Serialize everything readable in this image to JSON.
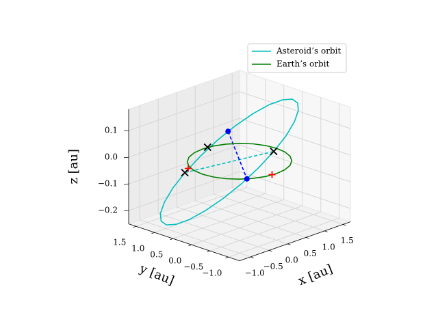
{
  "chart_data": {
    "type": "line3d",
    "xlabel": "x [au]",
    "ylabel": "y [au]",
    "zlabel": "z [au]",
    "xlim": [
      -1.3,
      1.7
    ],
    "ylim": [
      -1.3,
      1.7
    ],
    "zlim": [
      -0.25,
      0.18
    ],
    "xticks": [
      {
        "value": -1.0,
        "label": "−1.0"
      },
      {
        "value": -0.5,
        "label": "−0.5"
      },
      {
        "value": 0.0,
        "label": "0.0"
      },
      {
        "value": 0.5,
        "label": "0.5"
      },
      {
        "value": 1.0,
        "label": "1.0"
      },
      {
        "value": 1.5,
        "label": "1.5"
      }
    ],
    "yticks": [
      {
        "value": -1.0,
        "label": "−1.0"
      },
      {
        "value": -0.5,
        "label": "−0.5"
      },
      {
        "value": 0.0,
        "label": "0.0"
      },
      {
        "value": 0.5,
        "label": "0.5"
      },
      {
        "value": 1.0,
        "label": "1.0"
      },
      {
        "value": 1.5,
        "label": "1.5"
      }
    ],
    "zticks": [
      {
        "value": -0.2,
        "label": "−0.2"
      },
      {
        "value": -0.1,
        "label": "−0.1"
      },
      {
        "value": 0.0,
        "label": "0.0"
      },
      {
        "value": 0.1,
        "label": "0.1"
      }
    ],
    "grid": true,
    "legend": "upper right",
    "series": [
      {
        "name": "Asteroid’s orbit",
        "color": "#00bfbf",
        "x": [
          0.835,
          0.708,
          0.521,
          0.287,
          0.023,
          -0.254,
          -0.525,
          -0.772,
          -0.977,
          -1.127,
          -1.211,
          -1.224,
          -1.165,
          -1.038,
          -0.851,
          -0.617,
          -0.353,
          -0.076,
          0.195,
          0.442,
          0.647,
          0.797,
          0.881,
          0.894
        ],
        "y": [
          -0.09,
          -0.549,
          -0.963,
          -1.304,
          -1.549,
          -1.681,
          -1.69,
          -1.577,
          -1.349,
          -1.022,
          -0.617,
          -0.163,
          0.31,
          0.769,
          1.183,
          1.524,
          1.769,
          1.901,
          1.91,
          1.797,
          1.569,
          1.242,
          0.837,
          0.383
        ],
        "z": [
          0,
          0.086,
          0.167,
          0.236,
          0.289,
          0.323,
          0.334,
          0.323,
          0.289,
          0.236,
          0.167,
          0.086,
          0,
          -0.086,
          -0.167,
          -0.236,
          -0.289,
          -0.323,
          -0.334,
          -0.323,
          -0.289,
          -0.236,
          -0.167,
          -0.086
        ]
      },
      {
        "name": "Earth’s orbit",
        "color": "#008000",
        "x": [
          1,
          0.966,
          0.866,
          0.707,
          0.5,
          0.259,
          0,
          -0.259,
          -0.5,
          -0.707,
          -0.866,
          -0.966,
          -1,
          -0.966,
          -0.866,
          -0.707,
          -0.5,
          -0.259,
          0,
          0.259,
          0.5,
          0.707,
          0.866,
          0.966
        ],
        "y": [
          0,
          0.259,
          0.5,
          0.707,
          0.866,
          0.966,
          1,
          0.966,
          0.866,
          0.707,
          0.5,
          0.259,
          0,
          -0.259,
          -0.5,
          -0.707,
          -0.866,
          -0.966,
          -1,
          -0.966,
          -0.866,
          -0.707,
          -0.5,
          -0.259
        ],
        "z": [
          0,
          0,
          0,
          0,
          0,
          0,
          0,
          0,
          0,
          0,
          0,
          0,
          0,
          0,
          0,
          0,
          0,
          0,
          0,
          0,
          0,
          0,
          0,
          0
        ]
      }
    ],
    "segments": [
      {
        "color": "#00bfbf",
        "x": [
          -1.17,
          0.84
        ],
        "y": [
          0.31,
          -0.085
        ],
        "z": [
          0,
          0
        ]
      },
      {
        "color": "#0000ff",
        "x": [
          -1.17,
          -0.6
        ],
        "y": [
          -0.86,
          -0.8
        ],
        "z": [
          0.209,
          0
        ]
      }
    ],
    "markers": [
      {
        "marker": "o",
        "color": "#0000ff",
        "x": [
          -1.17,
          -0.6
        ],
        "y": [
          -0.86,
          -0.8
        ],
        "z": [
          0.209,
          0
        ]
      },
      {
        "marker": "x",
        "color": "#000000",
        "x": [
          0.135,
          0.84,
          -1.17
        ],
        "y": [
          1.0,
          -0.085,
          0.31
        ],
        "z": [
          0,
          0,
          0
        ]
      },
      {
        "marker": "+",
        "color": "#ff0000",
        "x": [
          -0.96,
          -0.1
        ],
        "y": [
          0.43,
          -0.98
        ],
        "z": [
          0,
          0
        ]
      }
    ]
  }
}
